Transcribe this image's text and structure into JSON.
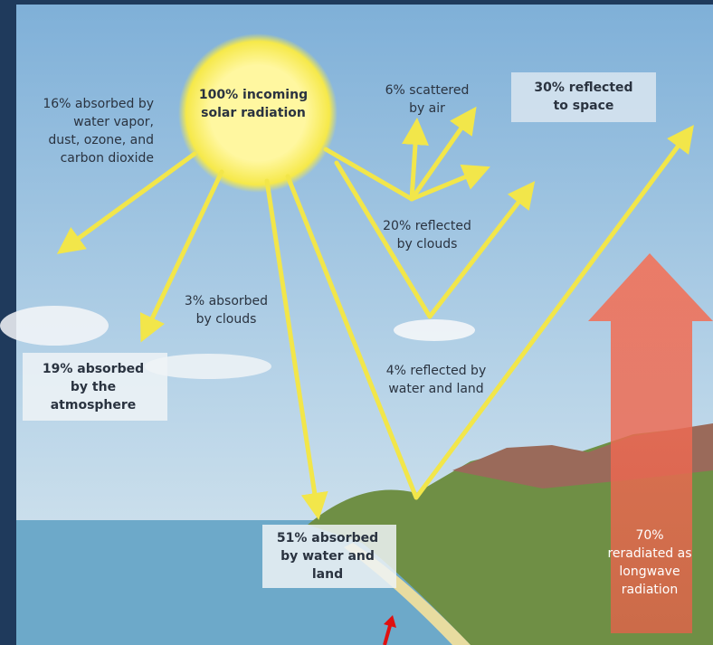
{
  "labels": [
    {
      "lines": [
        "16% absorbed by",
        "water vapor,",
        "dust, ozone, and",
        "carbon dioxide"
      ]
    },
    {
      "lines": [
        "100% incoming",
        "solar radiation"
      ]
    },
    {
      "lines": [
        "6% scattered",
        "by air"
      ]
    },
    {
      "lines": [
        "30% reflected",
        "to space"
      ]
    },
    {
      "lines": [
        "20% reflected",
        "by clouds"
      ]
    },
    {
      "lines": [
        "3% absorbed",
        "by clouds"
      ]
    },
    {
      "lines": [
        "19% absorbed",
        "by the",
        "atmosphere"
      ]
    },
    {
      "lines": [
        "4% reflected by",
        "water and land"
      ]
    },
    {
      "lines": [
        "51% absorbed",
        "by water and",
        "land"
      ]
    },
    {
      "lines": [
        "70%",
        "reradiated as",
        "longwave",
        "radiation"
      ]
    }
  ]
}
